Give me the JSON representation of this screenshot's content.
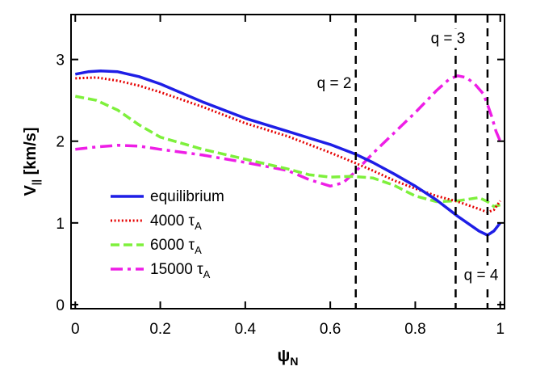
{
  "chart_data": {
    "type": "line",
    "xlabel": {
      "main": "ψ",
      "sub": "N"
    },
    "ylabel": {
      "main": "V",
      "sub": "||",
      "unit": " [km/s]"
    },
    "xlim": [
      -0.01,
      1.01
    ],
    "ylim": [
      -0.05,
      3.55
    ],
    "xticks": [
      0,
      0.2,
      0.4,
      0.6,
      0.8,
      1
    ],
    "xtick_labels": [
      "0",
      "0.2",
      "0.4",
      "0.6",
      "0.8",
      "1"
    ],
    "yticks": [
      0,
      1,
      2,
      3
    ],
    "ytick_labels": [
      "0",
      "1",
      "2",
      "3"
    ],
    "grid": false,
    "legend_position": "bottom-left",
    "series": [
      {
        "name": "equilibrium",
        "name_main": "equilibrium",
        "name_sub": "",
        "color": "#1e1ee6",
        "style": "solid",
        "x": [
          0,
          0.03,
          0.06,
          0.1,
          0.15,
          0.2,
          0.3,
          0.4,
          0.5,
          0.6,
          0.66,
          0.7,
          0.75,
          0.8,
          0.85,
          0.9,
          0.95,
          0.97,
          0.985,
          1.0
        ],
        "y": [
          2.82,
          2.85,
          2.86,
          2.85,
          2.79,
          2.7,
          2.48,
          2.28,
          2.12,
          1.96,
          1.84,
          1.74,
          1.6,
          1.45,
          1.28,
          1.08,
          0.9,
          0.85,
          0.9,
          1.0
        ]
      },
      {
        "name": "4000 τA",
        "name_main": "4000 τ",
        "name_sub": "A",
        "color": "#e60000",
        "style": "dotted",
        "x": [
          0,
          0.05,
          0.1,
          0.15,
          0.2,
          0.3,
          0.4,
          0.5,
          0.6,
          0.66,
          0.7,
          0.75,
          0.8,
          0.85,
          0.9,
          0.95,
          0.97,
          0.985,
          1.0
        ],
        "y": [
          2.77,
          2.78,
          2.74,
          2.68,
          2.6,
          2.42,
          2.22,
          2.06,
          1.86,
          1.73,
          1.64,
          1.52,
          1.42,
          1.33,
          1.26,
          1.17,
          1.13,
          1.16,
          1.27
        ]
      },
      {
        "name": "6000 τA",
        "name_main": "6000 τ",
        "name_sub": "A",
        "color": "#7ef03c",
        "style": "dashed",
        "x": [
          0,
          0.05,
          0.1,
          0.15,
          0.2,
          0.3,
          0.4,
          0.5,
          0.55,
          0.6,
          0.65,
          0.7,
          0.75,
          0.8,
          0.85,
          0.9,
          0.95,
          0.97,
          0.985,
          1.0
        ],
        "y": [
          2.55,
          2.5,
          2.38,
          2.2,
          2.05,
          1.9,
          1.78,
          1.66,
          1.59,
          1.56,
          1.57,
          1.55,
          1.46,
          1.33,
          1.26,
          1.27,
          1.31,
          1.26,
          1.2,
          1.22
        ]
      },
      {
        "name": "15000 τA",
        "name_main": "15000 τ",
        "name_sub": "A",
        "color": "#ee1ee6",
        "style": "dashdot",
        "x": [
          0,
          0.05,
          0.1,
          0.15,
          0.2,
          0.3,
          0.4,
          0.5,
          0.55,
          0.6,
          0.63,
          0.66,
          0.7,
          0.75,
          0.8,
          0.85,
          0.88,
          0.9,
          0.92,
          0.94,
          0.96,
          0.97,
          0.98,
          0.99,
          1.0
        ],
        "y": [
          1.9,
          1.93,
          1.95,
          1.94,
          1.9,
          1.83,
          1.74,
          1.64,
          1.53,
          1.45,
          1.49,
          1.63,
          1.85,
          2.1,
          2.35,
          2.62,
          2.76,
          2.8,
          2.78,
          2.7,
          2.58,
          2.45,
          2.3,
          2.12,
          2.0
        ]
      }
    ],
    "vlines": [
      {
        "x": 0.66,
        "label": "q = 2",
        "label_x": 0.65,
        "label_y": 2.65,
        "anchor": "end"
      },
      {
        "x": 0.895,
        "label": "q = 3",
        "label_x": 0.877,
        "label_y": 3.2,
        "anchor": "middle"
      },
      {
        "x": 0.97,
        "label": "q = 4",
        "label_x": 0.955,
        "label_y": 0.3,
        "anchor": "middle"
      }
    ]
  }
}
